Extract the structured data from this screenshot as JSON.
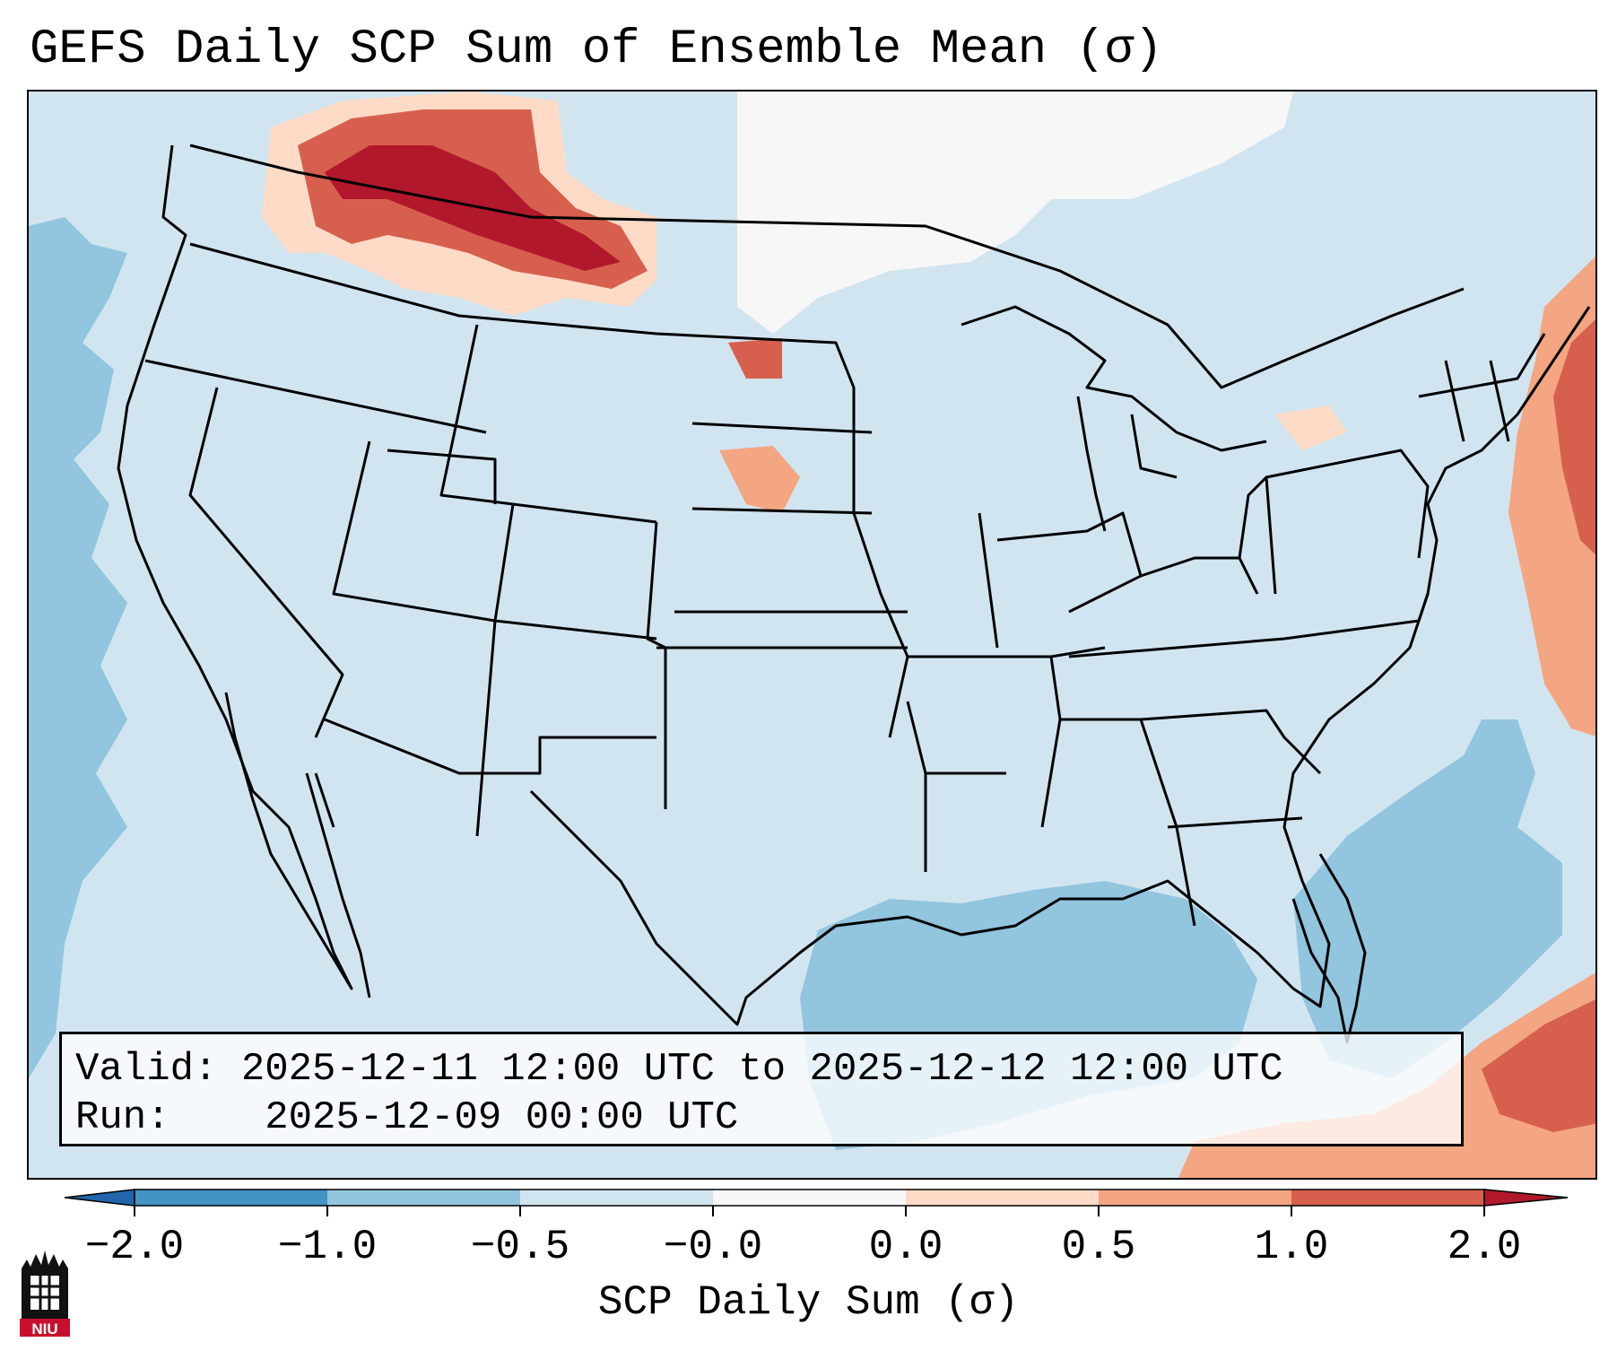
{
  "title": "GEFS Daily SCP Sum of Ensemble Mean (σ)",
  "info": {
    "valid_label": "Valid:",
    "valid_text": "2025-12-11 12:00 UTC to 2025-12-12 12:00 UTC",
    "run_label": "Run:",
    "run_text": "2025-12-09 00:00 UTC"
  },
  "colorbar": {
    "label": "SCP Daily Sum (σ)",
    "ticks": [
      "−2.0",
      "−1.0",
      "−0.5",
      "−0.0",
      "0.0",
      "0.5",
      "1.0",
      "2.0"
    ],
    "colors": {
      "below_min": "#2166ac",
      "bin_1": "#4393c3",
      "bin_2": "#92c5de",
      "bin_3": "#d1e5f0",
      "bin_4": "#f7f7f7",
      "bin_5": "#fddbc7",
      "bin_6": "#f4a582",
      "bin_7": "#d6604d",
      "above_max": "#b2182b"
    }
  },
  "logo": {
    "text": "NIU",
    "icon": "niu-logo-icon"
  },
  "map": {
    "projection": "Lambert conformal, CONUS",
    "background_value_color": "#d1e5f0"
  }
}
